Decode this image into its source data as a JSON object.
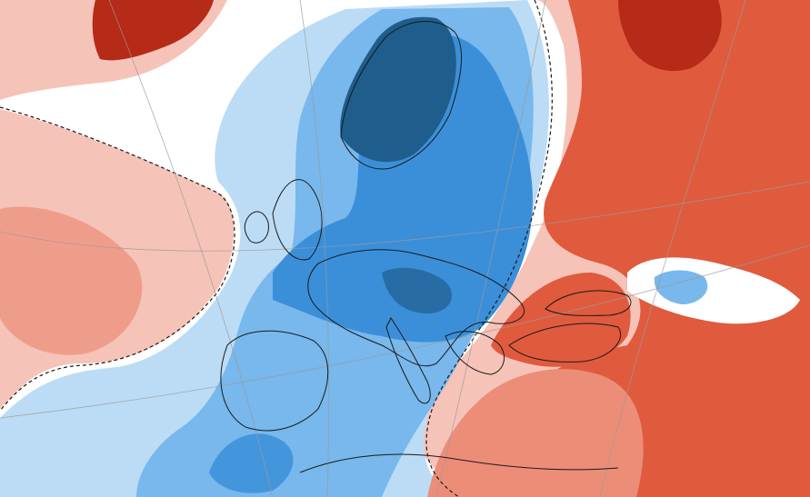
{
  "map": {
    "type": "temperature-anomaly-map",
    "projection": "polar-stereographic",
    "coastline_color": "#1a1a1a",
    "graticule_color": "#9a9a9a",
    "zero_contour_style": "dashed",
    "palette": {
      "strong_cold": "#1f5d8c",
      "cold": "#3b8fd9",
      "moderate_cold": "#78b8ec",
      "weak_cold": "#bcdcf5",
      "neutral": "#ffffff",
      "weak_warm": "#f6c3b8",
      "moderate_warm": "#ec8d78",
      "warm": "#e05a3e",
      "strong_warm": "#b52b18"
    },
    "regions": [
      {
        "id": "scandinavia",
        "anomaly": "strong-cold"
      },
      {
        "id": "central-europe",
        "anomaly": "cold"
      },
      {
        "id": "iberia-france",
        "anomaly": "moderate-cold"
      },
      {
        "id": "north-atlantic-east",
        "anomaly": "weak-cold"
      },
      {
        "id": "russia",
        "anomaly": "strong-warm"
      },
      {
        "id": "turkey-black-sea",
        "anomaly": "warm"
      },
      {
        "id": "north-africa",
        "anomaly": "moderate-warm"
      },
      {
        "id": "greenland",
        "anomaly": "strong-warm"
      },
      {
        "id": "west-atlantic",
        "anomaly": "weak-warm"
      }
    ]
  }
}
